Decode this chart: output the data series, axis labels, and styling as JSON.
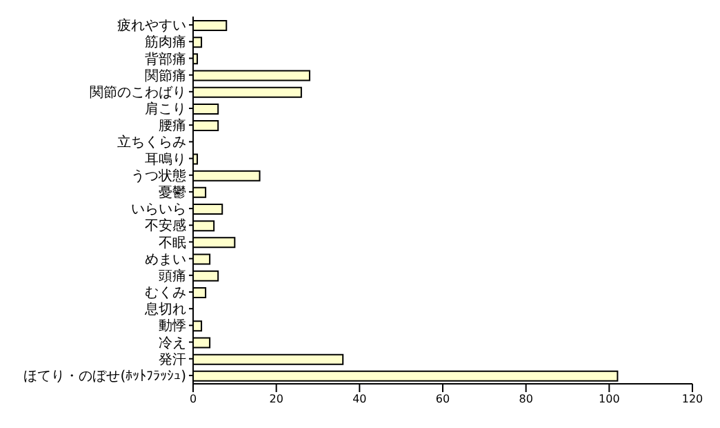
{
  "chart_data": {
    "type": "bar",
    "orientation": "horizontal",
    "categories": [
      "疲れやすい",
      "筋肉痛",
      "背部痛",
      "関節痛",
      "関節のこわばり",
      "肩こり",
      "腰痛",
      "立ちくらみ",
      "耳鳴り",
      "うつ状態",
      "憂鬱",
      "いらいら",
      "不安感",
      "不眠",
      "めまい",
      "頭痛",
      "むくみ",
      "息切れ",
      "動悸",
      "冷え",
      "発汗",
      "ほてり・のぼせ(ﾎｯﾄﾌﾗｯｼｭ)"
    ],
    "values": [
      8,
      2,
      1,
      28,
      26,
      6,
      6,
      0,
      1,
      16,
      3,
      7,
      5,
      10,
      4,
      6,
      3,
      0,
      2,
      4,
      36,
      102
    ],
    "color": "#ffffcc",
    "xlim": [
      0,
      120
    ],
    "xticks": [
      0,
      20,
      40,
      60,
      80,
      100,
      120
    ],
    "grid": false
  }
}
